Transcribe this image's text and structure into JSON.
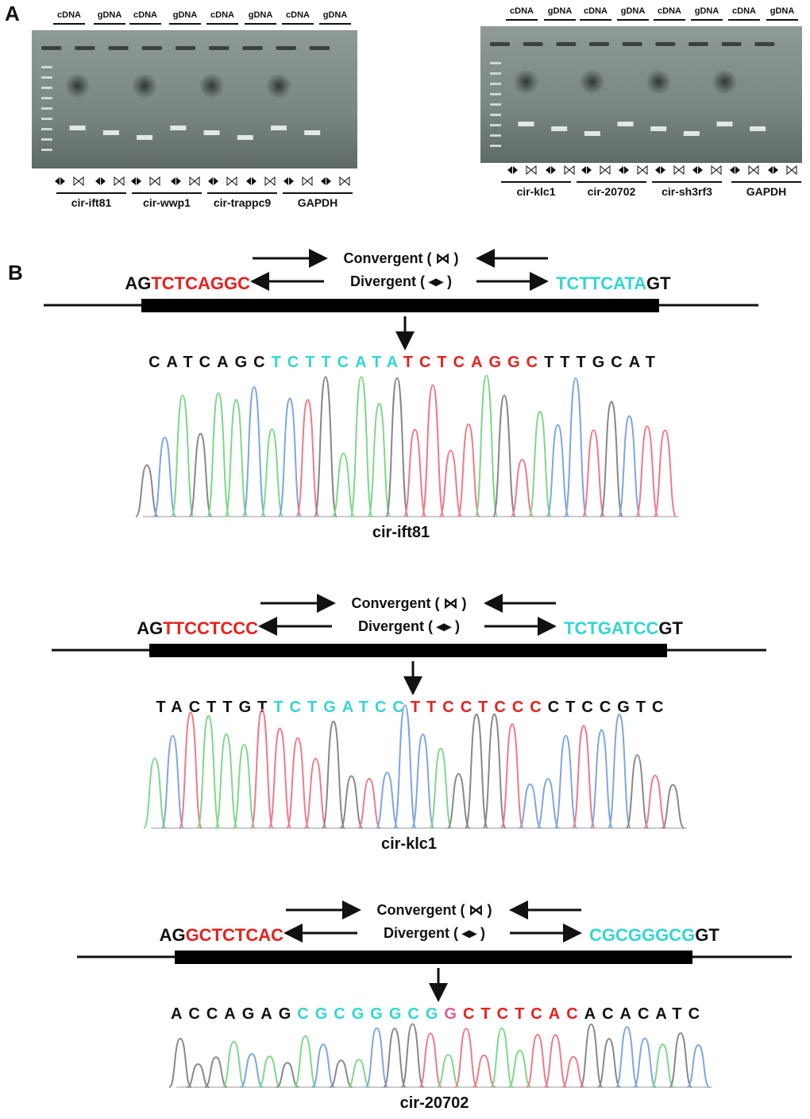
{
  "panel_a": {
    "label": "A",
    "gels": [
      {
        "lanes": [
          "cDNA",
          "gDNA",
          "cDNA",
          "gDNA",
          "cDNA",
          "gDNA",
          "cDNA",
          "gDNA"
        ],
        "genes": [
          "cir-ift81",
          "cir-wwp1",
          "cir-trappc9",
          "GAPDH"
        ]
      },
      {
        "lanes": [
          "cDNA",
          "gDNA",
          "cDNA",
          "gDNA",
          "cDNA",
          "gDNA",
          "cDNA",
          "gDNA"
        ],
        "genes": [
          "cir-klc1",
          "cir-20702",
          "cir-sh3rf3",
          "GAPDH"
        ]
      }
    ]
  },
  "panel_b": {
    "label": "B",
    "constructs": [
      {
        "convergent": "Convergent ( ⋈ )",
        "divergent": "Divergent ( ◂▸ )",
        "left_flank": "AG",
        "left_seq": "TCTCAGGC",
        "right_seq": "TCTTCATA",
        "right_flank": "GT",
        "read": [
          {
            "text": "CATCAGC",
            "color": "#111111"
          },
          {
            "text": "TCTTCATA",
            "color": "#33d6d0"
          },
          {
            "text": "TCTCAGGC",
            "color": "#e8201c"
          },
          {
            "text": "TTTGCAT",
            "color": "#111111"
          }
        ],
        "name": "cir-ift81"
      },
      {
        "convergent": "Convergent ( ⋈ )",
        "divergent": "Divergent ( ◂▸ )",
        "left_flank": "AG",
        "left_seq": "TTCCTCCC",
        "right_seq": "TCTGATCC",
        "right_flank": "GT",
        "read": [
          {
            "text": "TACTTGT",
            "color": "#111111"
          },
          {
            "text": "TCTGATCC",
            "color": "#33d6d0"
          },
          {
            "text": "TTCCTCCC",
            "color": "#e8201c"
          },
          {
            "text": "CTCCGTC",
            "color": "#111111"
          }
        ],
        "name": "cir-klc1"
      },
      {
        "convergent": "Convergent ( ⋈ )",
        "divergent": "Divergent ( ◂▸ )",
        "left_flank": "AG",
        "left_seq": "GCTCTCAC",
        "right_seq": "CGCGGGCG",
        "right_flank": "GT",
        "read": [
          {
            "text": "ACCAGAG",
            "color": "#111111"
          },
          {
            "text": "CGCGGGCG",
            "color": "#33d6d0"
          },
          {
            "text": "G",
            "color": "#e0608a"
          },
          {
            "text": "CTCTCAC",
            "color": "#e8201c"
          },
          {
            "text": "ACACATC",
            "color": "#111111"
          }
        ],
        "name": "cir-20702"
      }
    ]
  }
}
